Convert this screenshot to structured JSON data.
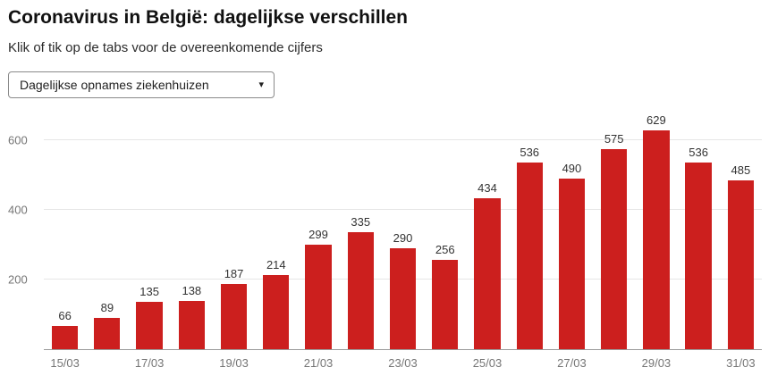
{
  "header": {
    "title": "Coronavirus in België: dagelijkse verschillen",
    "subtitle": "Klik of tik op de tabs voor de overeenkomende cijfers"
  },
  "dropdown": {
    "selected": "Dagelijkse opnames ziekenhuizen",
    "caret_icon": "▾"
  },
  "chart_data": {
    "type": "bar",
    "categories": [
      "15/03",
      "16/03",
      "17/03",
      "18/03",
      "19/03",
      "20/03",
      "21/03",
      "22/03",
      "23/03",
      "24/03",
      "25/03",
      "26/03",
      "27/03",
      "28/03",
      "29/03",
      "30/03",
      "31/03"
    ],
    "values": [
      66,
      89,
      135,
      138,
      187,
      214,
      299,
      335,
      290,
      256,
      434,
      536,
      490,
      575,
      629,
      536,
      485
    ],
    "x_tick_labels": [
      "15/03",
      "17/03",
      "19/03",
      "21/03",
      "23/03",
      "25/03",
      "27/03",
      "29/03",
      "31/03"
    ],
    "y_ticks": [
      200,
      400,
      600
    ],
    "ylim": [
      0,
      680
    ],
    "grid": true,
    "legend": false,
    "title": "",
    "xlabel": "",
    "ylabel": "",
    "bar_color": "#cc1f1e",
    "gridline_color": "#e6e6e6",
    "axis_label_color": "#757575"
  }
}
